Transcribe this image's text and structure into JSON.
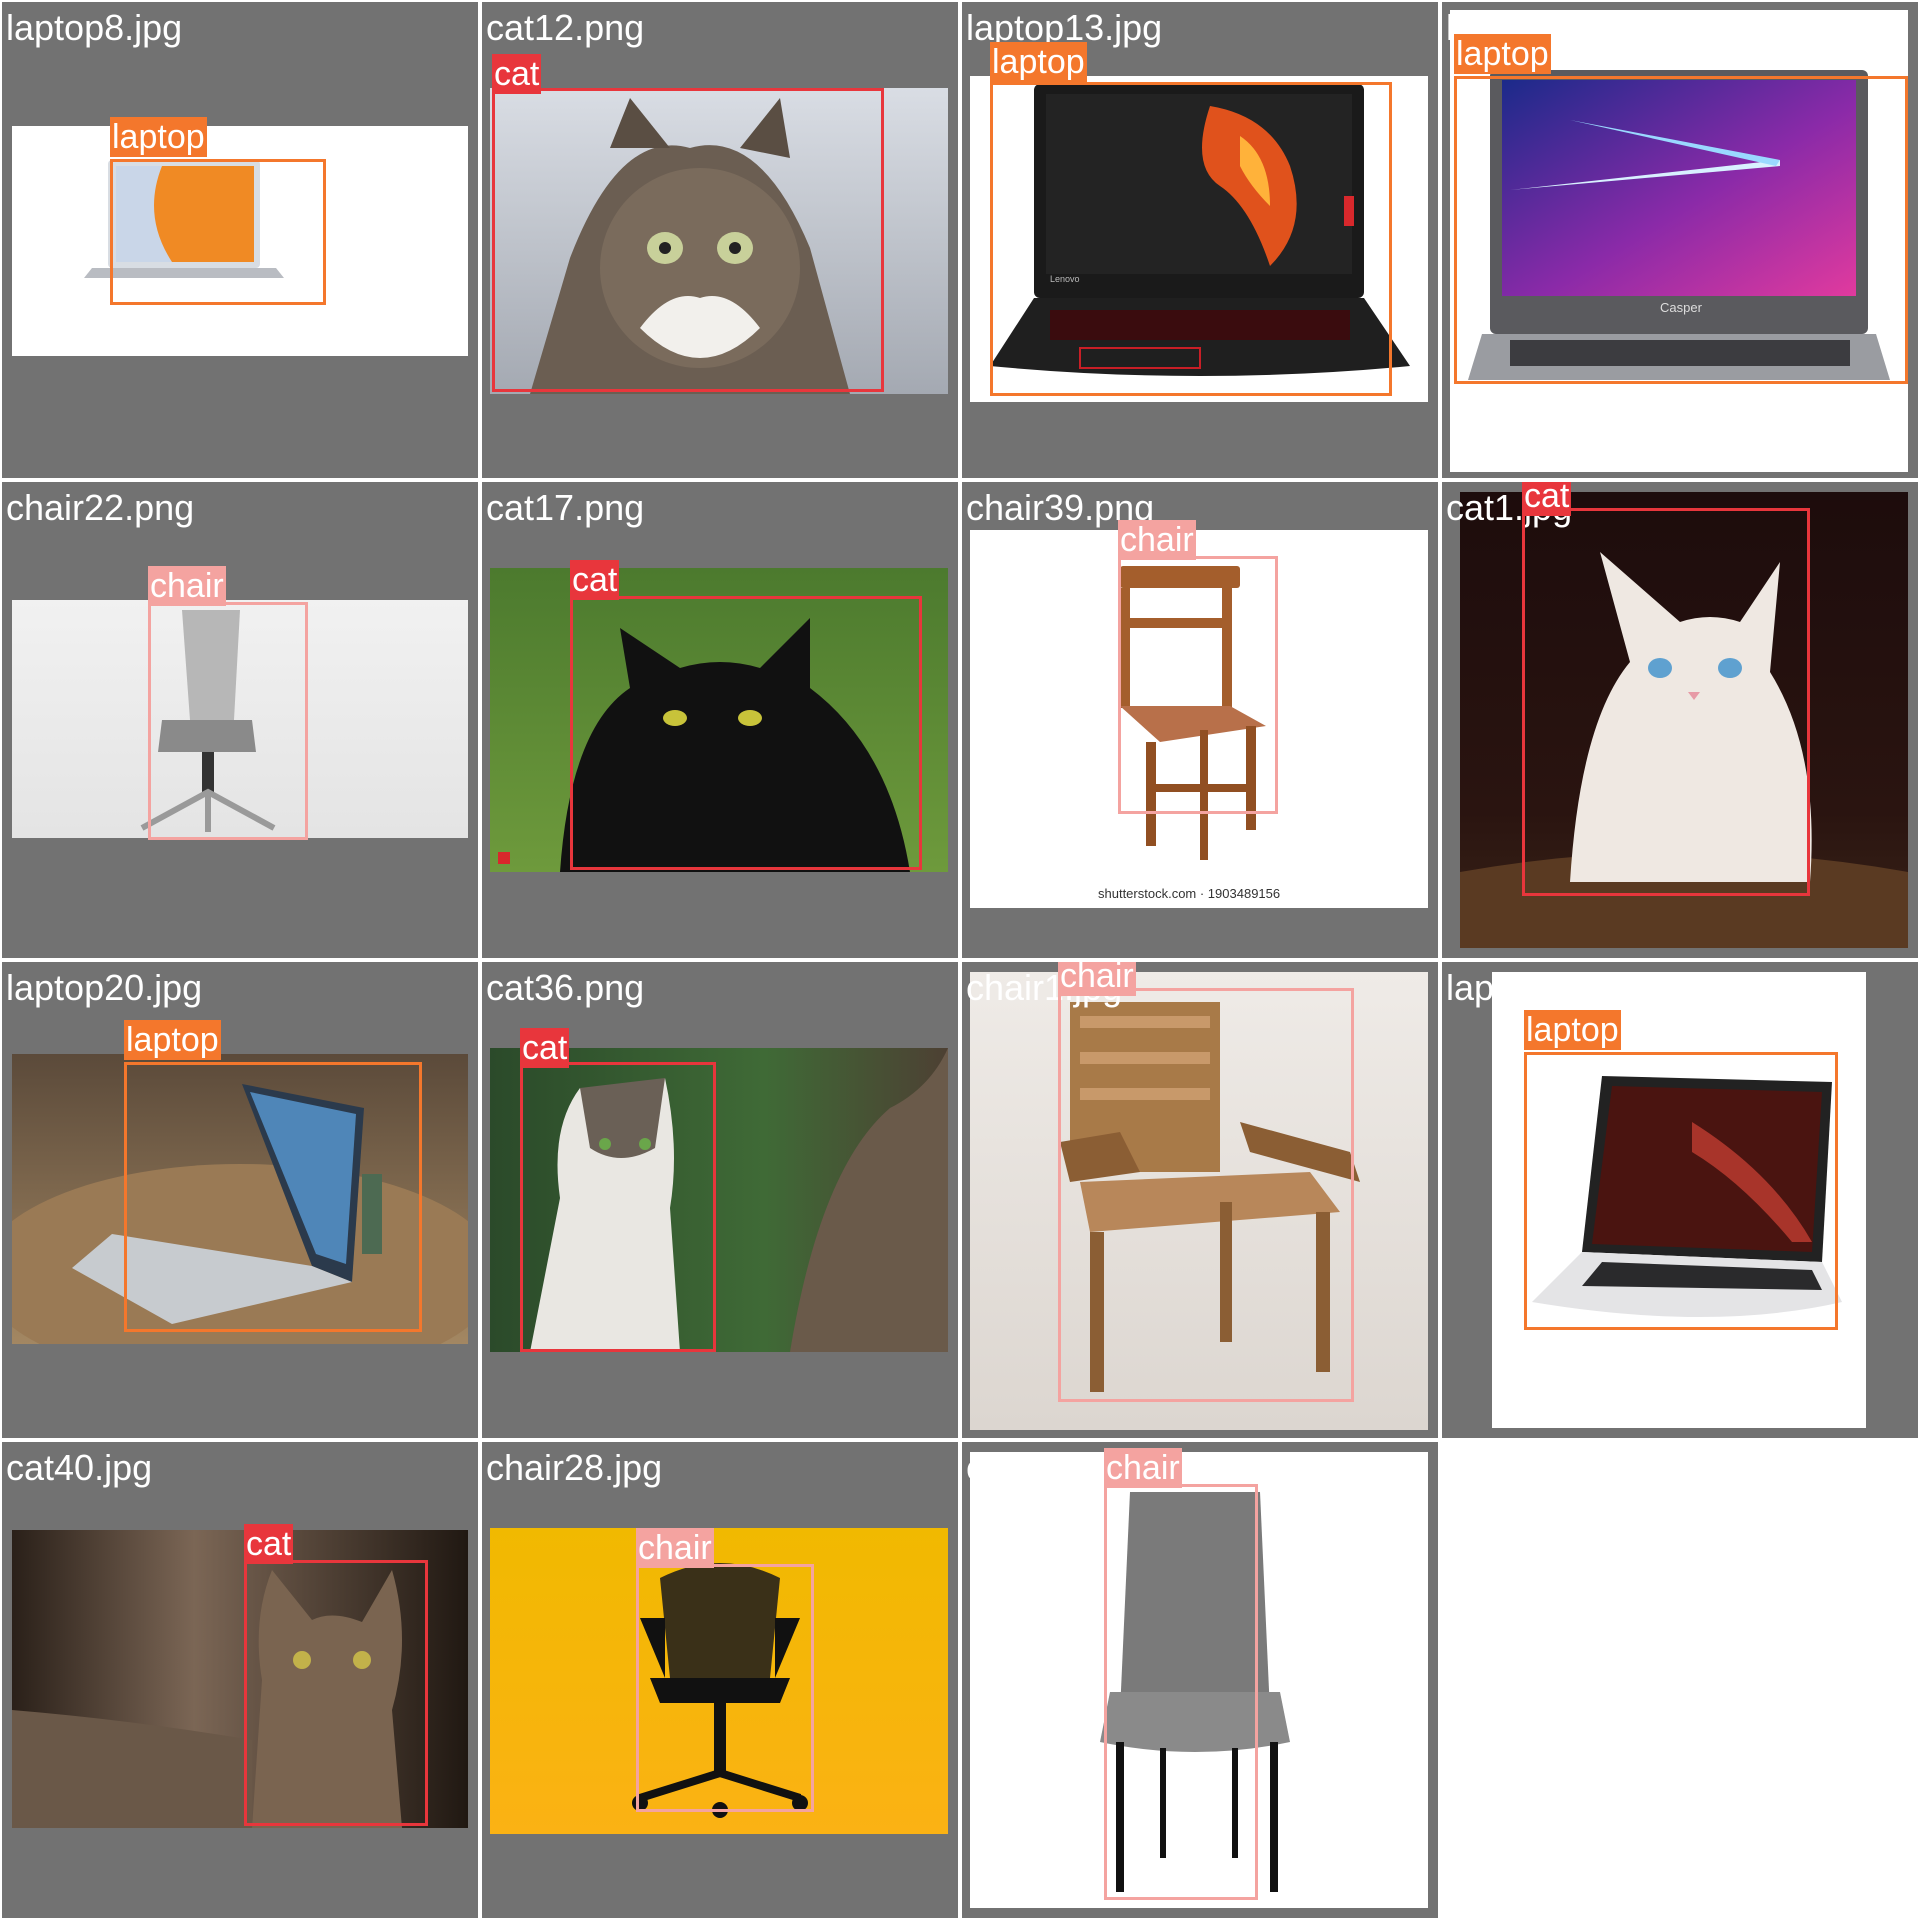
{
  "colors": {
    "background": "#727272",
    "cat": "#e8363c",
    "laptop": "#f4772c",
    "chair": "#f4a3a0"
  },
  "labels": {
    "cat": "cat",
    "laptop": "laptop",
    "chair": "chair"
  },
  "tiles": [
    {
      "filename": "laptop8.jpg",
      "label": "laptop",
      "subject": "laptop-photo"
    },
    {
      "filename": "cat12.png",
      "label": "cat",
      "subject": "tabby-cat-photo"
    },
    {
      "filename": "laptop13.jpg",
      "label": "laptop",
      "subject": "gaming-laptop-photo"
    },
    {
      "filename": "laptop32.png",
      "label": "laptop",
      "subject": "laptop-photo"
    },
    {
      "filename": "chair22.png",
      "label": "chair",
      "subject": "office-chair-photo"
    },
    {
      "filename": "cat17.png",
      "label": "cat",
      "subject": "black-cat-photo"
    },
    {
      "filename": "chair39.png",
      "label": "chair",
      "subject": "wooden-chair-illustration"
    },
    {
      "filename": "cat1.jpg",
      "label": "cat",
      "subject": "white-kitten-photo"
    },
    {
      "filename": "laptop20.jpg",
      "label": "laptop",
      "subject": "laptop-on-table-photo"
    },
    {
      "filename": "cat36.png",
      "label": "cat",
      "subject": "tabby-white-cat-photo"
    },
    {
      "filename": "chair1.jpg",
      "label": "chair",
      "subject": "wooden-armchair-photo"
    },
    {
      "filename": "laptop11.png",
      "label": "laptop",
      "subject": "laptop-photo"
    },
    {
      "filename": "cat40.jpg",
      "label": "cat",
      "subject": "tabby-cat-photo"
    },
    {
      "filename": "chair28.jpg",
      "label": "chair",
      "subject": "mesh-office-chair-photo"
    },
    {
      "filename": "chair15.jpg",
      "label": "chair",
      "subject": "grey-upholstered-chair-photo"
    }
  ],
  "watermarks": {
    "laptop13_screen": "Lenovo",
    "laptop32_bezel": "Casper",
    "chair39": "shutterstock.com · 1903489156"
  }
}
